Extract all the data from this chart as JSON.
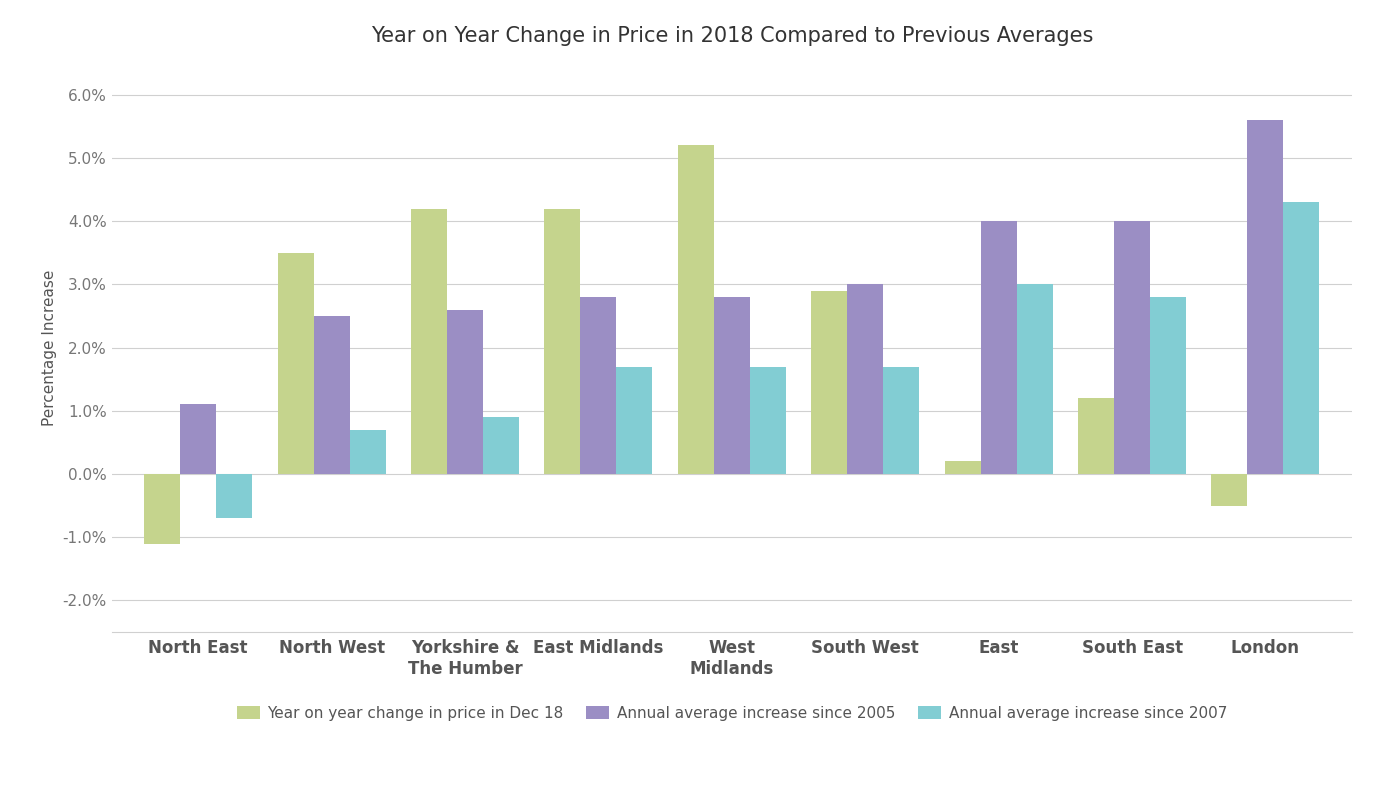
{
  "title": "Year on Year Change in Price in 2018 Compared to Previous Averages",
  "ylabel": "Percentage Increase",
  "categories": [
    "North East",
    "North West",
    "Yorkshire &\nThe Humber",
    "East Midlands",
    "West\nMidlands",
    "South West",
    "East",
    "South East",
    "London"
  ],
  "series": {
    "Year on year change in price in Dec 18": [
      -0.011,
      0.035,
      0.042,
      0.042,
      0.052,
      0.029,
      0.002,
      0.012,
      -0.005
    ],
    "Annual average increase since 2005": [
      0.011,
      0.025,
      0.026,
      0.028,
      0.028,
      0.03,
      0.04,
      0.04,
      0.056
    ],
    "Annual average increase since 2007": [
      -0.007,
      0.007,
      0.009,
      0.017,
      0.017,
      0.017,
      0.03,
      0.028,
      0.043
    ]
  },
  "colors": {
    "Year on year change in price in Dec 18": "#c5d48d",
    "Annual average increase since 2005": "#9b8ec4",
    "Annual average increase since 2007": "#82cdd3"
  },
  "ylim": [
    -0.025,
    0.065
  ],
  "yticks": [
    -0.02,
    -0.01,
    0.0,
    0.01,
    0.02,
    0.03,
    0.04,
    0.05,
    0.06
  ],
  "background_color": "#ffffff",
  "grid_color": "#d0d0d0",
  "bar_width": 0.27,
  "title_fontsize": 15,
  "label_fontsize": 11,
  "tick_fontsize": 11,
  "xticklabel_fontsize": 12
}
